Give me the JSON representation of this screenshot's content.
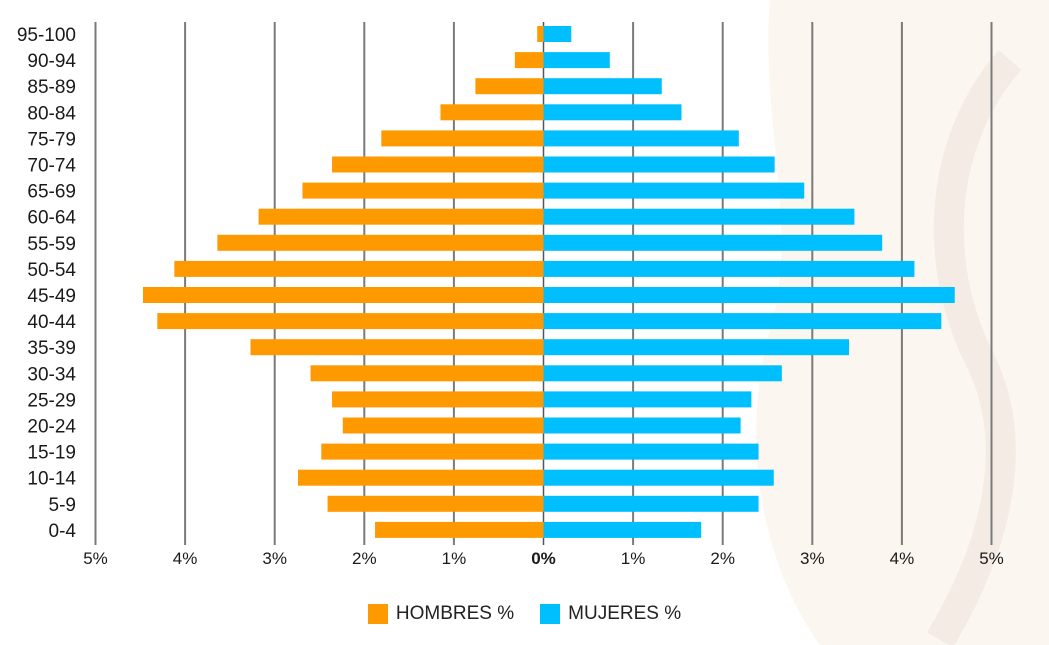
{
  "chart_data": {
    "type": "bar",
    "orientation": "horizontal-population-pyramid",
    "categories": [
      "95-100",
      "90-94",
      "85-89",
      "80-84",
      "75-79",
      "70-74",
      "65-69",
      "60-64",
      "55-59",
      "50-54",
      "45-49",
      "40-44",
      "35-39",
      "30-34",
      "25-29",
      "20-24",
      "15-19",
      "10-14",
      "5-9",
      "0-4"
    ],
    "series": [
      {
        "name": "HOMBRES %",
        "color": "#FF9900",
        "side": "left",
        "values": [
          0.07,
          0.32,
          0.76,
          1.15,
          1.81,
          2.36,
          2.69,
          3.18,
          3.64,
          4.12,
          4.47,
          4.31,
          3.27,
          2.6,
          2.36,
          2.24,
          2.48,
          2.74,
          2.41,
          1.88
        ]
      },
      {
        "name": "MUJERES %",
        "color": "#00BFFF",
        "side": "right",
        "values": [
          0.31,
          0.74,
          1.32,
          1.54,
          2.18,
          2.58,
          2.91,
          3.47,
          3.78,
          4.14,
          4.59,
          4.44,
          3.41,
          2.66,
          2.32,
          2.2,
          2.4,
          2.57,
          2.4,
          1.76
        ]
      }
    ],
    "x_ticks": [
      "5%",
      "4%",
      "3%",
      "2%",
      "1%",
      "0%",
      "1%",
      "2%",
      "3%",
      "4%",
      "5%"
    ],
    "xlim": [
      -5,
      5
    ],
    "grid": true,
    "legend_position": "bottom",
    "title": "",
    "xlabel": "",
    "ylabel": ""
  }
}
